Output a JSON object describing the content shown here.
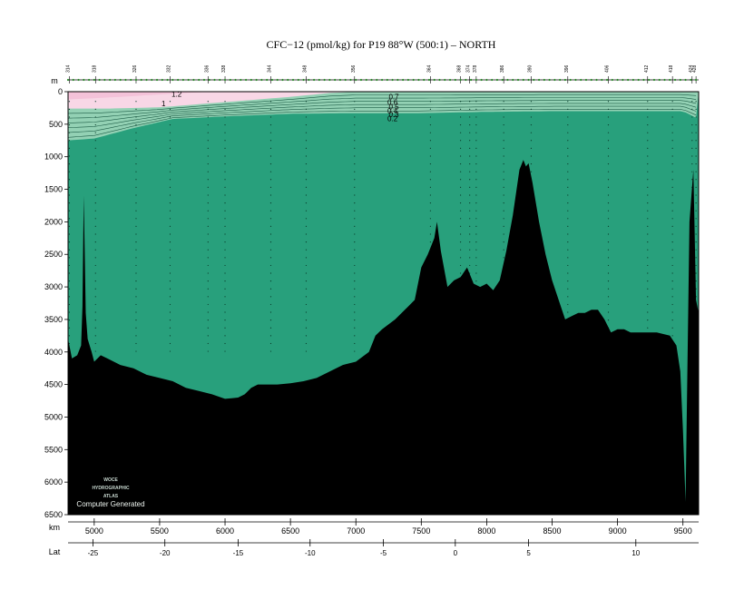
{
  "chart_data": {
    "type": "heatmap",
    "title": "CFC−12 (pmol/kg) for P19 88°W (500:1) – NORTH",
    "y_unit_label": "m",
    "x_unit_label": "km",
    "lat_label": "Lat",
    "xlim": [
      4800,
      9620
    ],
    "ylim": [
      6500,
      0
    ],
    "y_ticks": [
      0,
      500,
      1000,
      1500,
      2000,
      2500,
      3000,
      3500,
      4000,
      4500,
      5000,
      5500,
      6000,
      6500
    ],
    "x_ticks": [
      5000,
      5500,
      6000,
      6500,
      7000,
      7500,
      8000,
      8500,
      9000,
      9500
    ],
    "lat_ticks": [
      {
        "lat": -25,
        "km": 4990
      },
      {
        "lat": -20,
        "km": 5540
      },
      {
        "lat": -15,
        "km": 6100
      },
      {
        "lat": -10,
        "km": 6650
      },
      {
        "lat": -5,
        "km": 7210
      },
      {
        "lat": 0,
        "km": 7760
      },
      {
        "lat": 5,
        "km": 8320
      },
      {
        "lat": 10,
        "km": 9140
      }
    ],
    "station_labels": [
      {
        "label": "314",
        "km": 4810
      },
      {
        "label": "318",
        "km": 5010
      },
      {
        "label": "326",
        "km": 5320
      },
      {
        "label": "332",
        "km": 5580
      },
      {
        "label": "336",
        "km": 5870
      },
      {
        "label": "338",
        "km": 6000
      },
      {
        "label": "344",
        "km": 6350
      },
      {
        "label": "348",
        "km": 6620
      },
      {
        "label": "356",
        "km": 6990
      },
      {
        "label": "364",
        "km": 7570
      },
      {
        "label": "368",
        "km": 7800
      },
      {
        "label": "374",
        "km": 7870
      },
      {
        "label": "378",
        "km": 7920
      },
      {
        "label": "386",
        "km": 8130
      },
      {
        "label": "390",
        "km": 8340
      },
      {
        "label": "396",
        "km": 8620
      },
      {
        "label": "406",
        "km": 8930
      },
      {
        "label": "412",
        "km": 9230
      },
      {
        "label": "418",
        "km": 9420
      },
      {
        "label": "424",
        "km": 9570
      },
      {
        "label": "428",
        "km": 9600
      }
    ],
    "color_bands": [
      {
        "range": [
          1.2,
          2.0
        ],
        "color": "#f4c2d9"
      },
      {
        "range": [
          1.0,
          1.2
        ],
        "color": "#f8d7e6"
      },
      {
        "range": [
          0.1,
          1.0
        ],
        "color": "#93d1b4"
      },
      {
        "range": [
          0.0,
          0.1
        ],
        "color": "#28a07c"
      }
    ],
    "contour_labels": [
      {
        "value": "1.2",
        "km": 5630,
        "depth": 35
      },
      {
        "value": "1",
        "km": 5530,
        "depth": 180
      },
      {
        "value": "0.7",
        "km": 7290,
        "depth": 80
      },
      {
        "value": "0.6",
        "km": 7280,
        "depth": 160
      },
      {
        "value": "0.5",
        "km": 7290,
        "depth": 230
      },
      {
        "value": "0.4",
        "km": 7280,
        "depth": 290
      },
      {
        "value": "0.3",
        "km": 7290,
        "depth": 350
      },
      {
        "value": "0.2",
        "km": 7280,
        "depth": 410
      }
    ],
    "bottom_profile": {
      "km": [
        4800,
        4830,
        4870,
        4900,
        4910,
        4920,
        4935,
        4950,
        4980,
        5000,
        5050,
        5100,
        5200,
        5300,
        5400,
        5500,
        5600,
        5700,
        5800,
        5900,
        6000,
        6100,
        6150,
        6200,
        6250,
        6300,
        6400,
        6500,
        6600,
        6700,
        6800,
        6900,
        7000,
        7100,
        7150,
        7200,
        7300,
        7400,
        7450,
        7500,
        7550,
        7600,
        7620,
        7650,
        7700,
        7750,
        7800,
        7850,
        7900,
        7950,
        8000,
        8050,
        8100,
        8150,
        8200,
        8250,
        8280,
        8300,
        8320,
        8350,
        8400,
        8450,
        8500,
        8550,
        8600,
        8650,
        8700,
        8750,
        8800,
        8850,
        8900,
        8950,
        9000,
        9050,
        9100,
        9200,
        9300,
        9400,
        9450,
        9480,
        9500,
        9520,
        9550,
        9580,
        9600,
        9620
      ],
      "depth": [
        3800,
        4100,
        4050,
        3900,
        3300,
        1600,
        3400,
        3800,
        4000,
        4150,
        4050,
        4100,
        4200,
        4250,
        4350,
        4400,
        4450,
        4550,
        4600,
        4650,
        4720,
        4700,
        4650,
        4550,
        4500,
        4500,
        4500,
        4480,
        4450,
        4400,
        4300,
        4200,
        4150,
        4000,
        3750,
        3650,
        3500,
        3300,
        3200,
        2700,
        2500,
        2250,
        2000,
        2450,
        3000,
        2900,
        2850,
        2700,
        2950,
        3000,
        2950,
        3050,
        2900,
        2450,
        1900,
        1200,
        1050,
        1150,
        1100,
        1400,
        2000,
        2500,
        2900,
        3200,
        3500,
        3450,
        3400,
        3400,
        3350,
        3350,
        3500,
        3700,
        3650,
        3650,
        3700,
        3700,
        3700,
        3750,
        3900,
        4300,
        5200,
        6300,
        2000,
        1200,
        3200,
        3400
      ]
    }
  }
}
